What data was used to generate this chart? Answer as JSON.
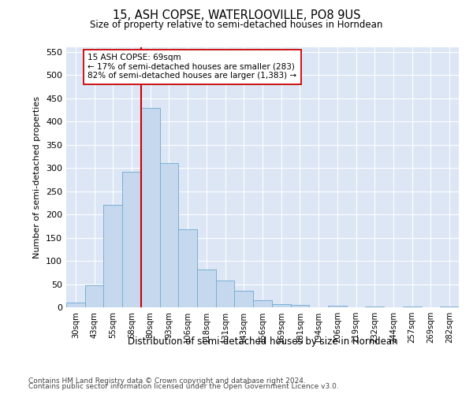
{
  "title1": "15, ASH COPSE, WATERLOOVILLE, PO8 9US",
  "title2": "Size of property relative to semi-detached houses in Horndean",
  "xlabel": "Distribution of semi-detached houses by size in Horndean",
  "ylabel": "Number of semi-detached properties",
  "footnote_line1": "Contains HM Land Registry data © Crown copyright and database right 2024.",
  "footnote_line2": "Contains public sector information licensed under the Open Government Licence v3.0.",
  "bin_labels": [
    "30sqm",
    "43sqm",
    "55sqm",
    "68sqm",
    "80sqm",
    "93sqm",
    "106sqm",
    "118sqm",
    "131sqm",
    "143sqm",
    "156sqm",
    "169sqm",
    "181sqm",
    "194sqm",
    "206sqm",
    "219sqm",
    "232sqm",
    "244sqm",
    "257sqm",
    "269sqm",
    "282sqm"
  ],
  "bar_values": [
    10,
    48,
    221,
    292,
    430,
    311,
    168,
    82,
    57,
    35,
    16,
    7,
    5,
    0,
    3,
    0,
    1,
    0,
    1,
    0,
    2
  ],
  "bar_color": "#c5d8ee",
  "bar_edge_color": "#7aafd4",
  "vline_x": 3.5,
  "vline_color": "#cc0000",
  "annotation_line1": "15 ASH COPSE: 69sqm",
  "annotation_line2": "← 17% of semi-detached houses are smaller (283)",
  "annotation_line3": "82% of semi-detached houses are larger (1,383) →",
  "annotation_box_color": "#ffffff",
  "annotation_box_edge": "#cc0000",
  "ylim": [
    0,
    560
  ],
  "yticks": [
    0,
    50,
    100,
    150,
    200,
    250,
    300,
    350,
    400,
    450,
    500,
    550
  ],
  "plot_bg_color": "#dce6f5",
  "grid_color": "#ffffff"
}
